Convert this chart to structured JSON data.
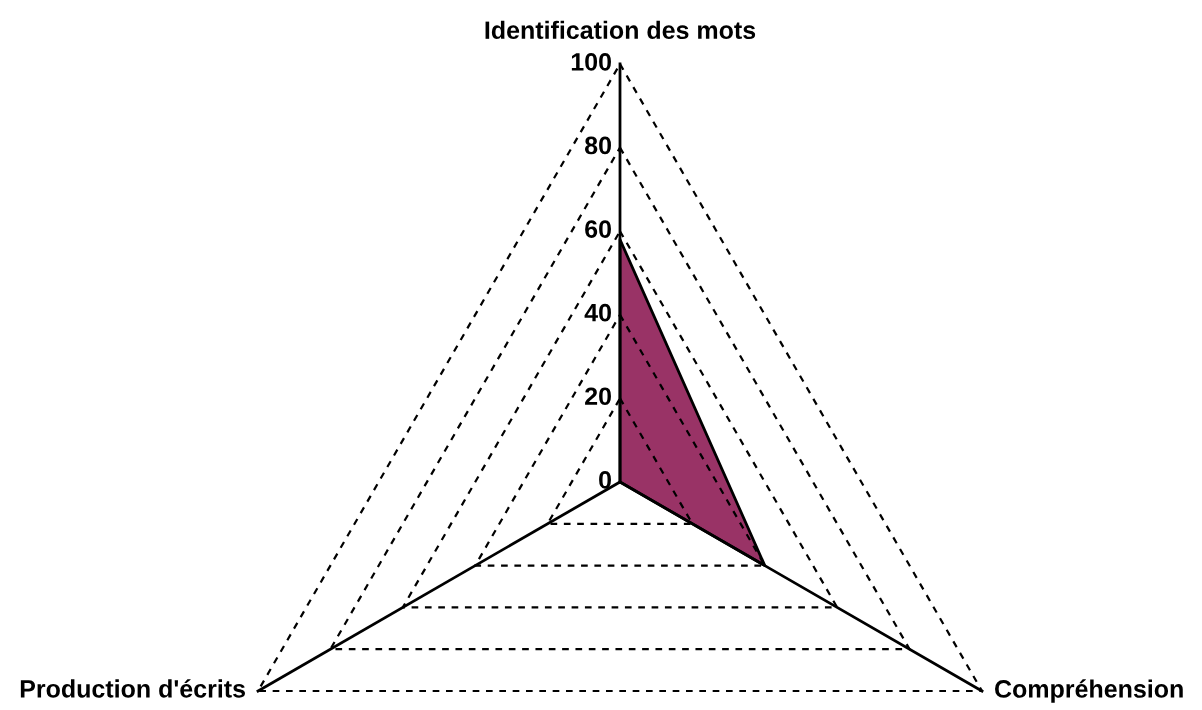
{
  "chart_data": {
    "type": "radar",
    "categories": [
      "Identification des mots",
      "Compréhension",
      "Production d'écrits"
    ],
    "series": [
      {
        "color": "#993366",
        "values": [
          58,
          40,
          0
        ]
      }
    ],
    "ylim": [
      0,
      100
    ],
    "yticks": [
      0,
      20,
      40,
      60,
      80,
      100
    ],
    "grid": true,
    "line_style": "dashed"
  }
}
